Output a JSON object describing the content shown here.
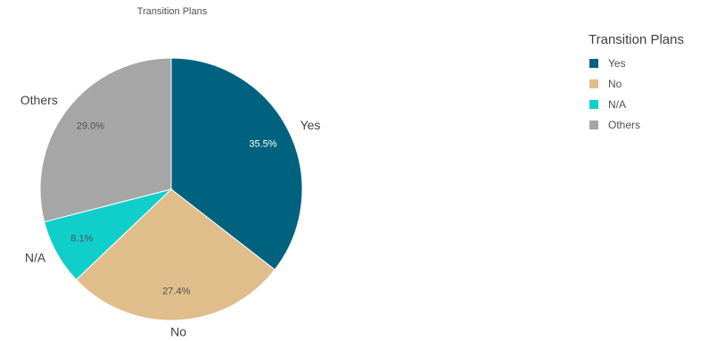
{
  "chart_data": {
    "type": "pie",
    "title": "Transition Plans",
    "slices": [
      {
        "label": "Yes",
        "value": 35.5,
        "display": "35.5%",
        "color": "#00627f"
      },
      {
        "label": "No",
        "value": 27.4,
        "display": "27.4%",
        "color": "#dfbe8c"
      },
      {
        "label": "N/A",
        "value": 8.1,
        "display": "8.1%",
        "color": "#10cfcb"
      },
      {
        "label": "Others",
        "value": 29.0,
        "display": "29.0%",
        "color": "#a6a6a6"
      }
    ],
    "legend": {
      "title": "Transition Plans",
      "position": "right"
    }
  }
}
